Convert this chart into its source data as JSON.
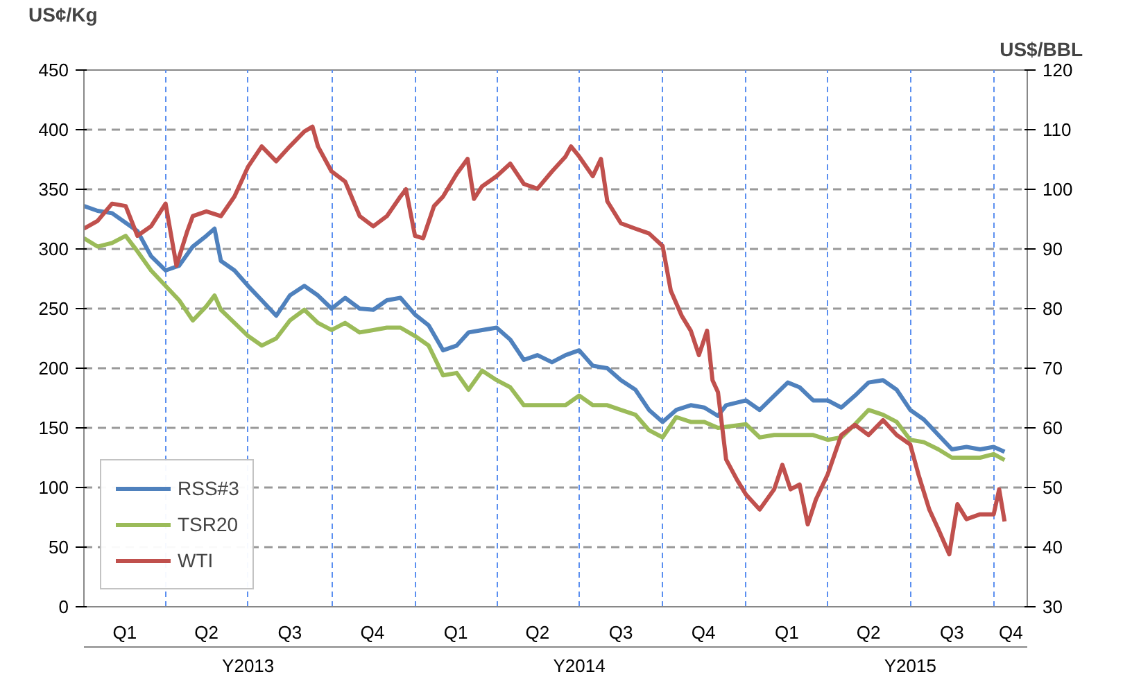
{
  "chart_data": {
    "type": "line",
    "ylabel": "US¢/Kg",
    "y2label": "US$/BBL",
    "xlim": [
      "2013-01-01",
      "2015-11-07"
    ],
    "xticks": [
      {
        "value": "2013-02-15",
        "label": "Q1"
      },
      {
        "value": "2013-04-01",
        "label": null
      },
      {
        "value": "2013-05-16",
        "label": "Q2"
      },
      {
        "value": "2013-07-01",
        "label": null
      },
      {
        "value": "2013-08-16",
        "label": "Q3"
      },
      {
        "value": "2013-10-01",
        "label": null
      },
      {
        "value": "2013-11-15",
        "label": "Q4"
      },
      {
        "value": "2014-01-01",
        "label": null
      },
      {
        "value": "2014-02-15",
        "label": "Q1"
      },
      {
        "value": "2014-04-01",
        "label": null
      },
      {
        "value": "2014-05-16",
        "label": "Q2"
      },
      {
        "value": "2014-07-01",
        "label": null
      },
      {
        "value": "2014-08-16",
        "label": "Q3"
      },
      {
        "value": "2014-10-01",
        "label": null
      },
      {
        "value": "2014-11-15",
        "label": "Q4"
      },
      {
        "value": "2015-01-01",
        "label": null
      },
      {
        "value": "2015-02-15",
        "label": "Q1"
      },
      {
        "value": "2015-04-01",
        "label": null
      },
      {
        "value": "2015-05-16",
        "label": "Q2"
      },
      {
        "value": "2015-07-01",
        "label": null
      },
      {
        "value": "2015-08-16",
        "label": "Q3"
      },
      {
        "value": "2015-10-01",
        "label": null
      },
      {
        "value": "2015-10-20",
        "label": "Q4"
      }
    ],
    "ylim": [
      0,
      450
    ],
    "yticks": [
      0,
      50,
      100,
      150,
      200,
      250,
      300,
      350,
      400,
      450
    ],
    "y2lim": [
      30,
      120
    ],
    "y2ticks": [
      30,
      40,
      50,
      60,
      70,
      80,
      90,
      100,
      110,
      120
    ],
    "annotations": [
      "Y2013",
      "Y2014",
      "Y2015"
    ],
    "grid": true,
    "legend": "bottom left",
    "line_style": "solid",
    "marker": "none",
    "series": [
      {
        "name": "RSS#3",
        "color": "#4f81bd",
        "x": [
          "2013-01-01",
          "2013-01-16",
          "2013-02-01",
          "2013-03-01",
          "2013-03-16",
          "2013-04-01",
          "2013-04-16",
          "2013-05-01",
          "2013-05-16",
          "2013-05-25",
          "2013-06-01",
          "2013-06-16",
          "2013-07-01",
          "2013-07-16",
          "2013-08-01",
          "2013-08-16",
          "2013-09-01",
          "2013-09-16",
          "2013-10-01",
          "2013-10-16",
          "2013-11-01",
          "2013-11-16",
          "2013-12-01",
          "2013-12-16",
          "2014-01-01",
          "2014-01-16",
          "2014-02-01",
          "2014-02-16",
          "2014-03-01",
          "2014-03-16",
          "2014-04-01",
          "2014-04-16",
          "2014-05-01",
          "2014-05-16",
          "2014-06-01",
          "2014-06-16",
          "2014-07-01",
          "2014-07-16",
          "2014-08-01",
          "2014-08-16",
          "2014-09-01",
          "2014-09-16",
          "2014-10-01",
          "2014-10-16",
          "2014-11-01",
          "2014-11-16",
          "2014-12-01",
          "2014-12-10",
          "2015-01-01",
          "2015-01-16",
          "2015-02-01",
          "2015-02-16",
          "2015-03-01",
          "2015-03-16",
          "2015-04-01",
          "2015-04-16",
          "2015-05-01",
          "2015-05-16",
          "2015-06-01",
          "2015-06-16",
          "2015-07-01",
          "2015-07-16",
          "2015-08-01",
          "2015-08-16",
          "2015-09-01",
          "2015-09-16",
          "2015-10-01",
          "2015-10-13"
        ],
        "values": [
          336,
          332,
          330,
          315,
          294,
          282,
          286,
          302,
          311,
          317,
          290,
          282,
          269,
          257,
          244,
          261,
          269,
          261,
          250,
          259,
          250,
          249,
          257,
          259,
          245,
          236,
          215,
          219,
          230,
          232,
          234,
          224,
          207,
          211,
          205,
          211,
          215,
          202,
          200,
          190,
          182,
          165,
          155,
          165,
          169,
          167,
          160,
          169,
          173,
          165,
          177,
          188,
          184,
          173,
          173,
          167,
          177,
          188,
          190,
          182,
          165,
          157,
          144,
          132,
          134,
          132,
          134,
          130
        ]
      },
      {
        "name": "TSR20",
        "color": "#9bbb59",
        "x": [
          "2013-01-01",
          "2013-01-16",
          "2013-02-01",
          "2013-02-16",
          "2013-03-01",
          "2013-03-16",
          "2013-04-01",
          "2013-04-16",
          "2013-05-01",
          "2013-05-16",
          "2013-05-25",
          "2013-06-01",
          "2013-06-16",
          "2013-07-01",
          "2013-07-16",
          "2013-08-01",
          "2013-08-16",
          "2013-09-01",
          "2013-09-16",
          "2013-10-01",
          "2013-10-16",
          "2013-11-01",
          "2013-11-16",
          "2013-12-01",
          "2013-12-16",
          "2014-01-01",
          "2014-01-16",
          "2014-02-01",
          "2014-02-16",
          "2014-03-01",
          "2014-03-16",
          "2014-04-01",
          "2014-04-16",
          "2014-05-01",
          "2014-05-16",
          "2014-06-01",
          "2014-06-16",
          "2014-07-01",
          "2014-07-16",
          "2014-08-01",
          "2014-08-16",
          "2014-09-01",
          "2014-09-16",
          "2014-10-01",
          "2014-10-16",
          "2014-11-01",
          "2014-11-16",
          "2014-12-01",
          "2015-01-01",
          "2015-01-16",
          "2015-02-01",
          "2015-03-01",
          "2015-03-16",
          "2015-04-01",
          "2015-04-16",
          "2015-05-01",
          "2015-05-16",
          "2015-06-01",
          "2015-06-16",
          "2015-07-01",
          "2015-07-16",
          "2015-08-01",
          "2015-08-16",
          "2015-09-01",
          "2015-09-16",
          "2015-10-01",
          "2015-10-13"
        ],
        "values": [
          309,
          302,
          305,
          311,
          298,
          282,
          269,
          257,
          240,
          252,
          261,
          249,
          238,
          227,
          219,
          225,
          240,
          249,
          238,
          232,
          238,
          230,
          232,
          234,
          234,
          227,
          219,
          194,
          196,
          182,
          198,
          190,
          184,
          169,
          169,
          169,
          169,
          177,
          169,
          169,
          165,
          161,
          148,
          142,
          159,
          155,
          155,
          150,
          153,
          142,
          144,
          144,
          144,
          140,
          142,
          153,
          165,
          161,
          155,
          140,
          138,
          132,
          125,
          125,
          125,
          128,
          123
        ]
      },
      {
        "name": "WTI",
        "color": "#c0504d",
        "axis": "y2",
        "x": [
          "2013-01-01",
          "2013-01-16",
          "2013-02-01",
          "2013-02-16",
          "2013-03-01",
          "2013-03-16",
          "2013-04-01",
          "2013-04-13",
          "2013-04-25",
          "2013-05-01",
          "2013-05-16",
          "2013-06-01",
          "2013-06-16",
          "2013-07-01",
          "2013-07-16",
          "2013-08-01",
          "2013-08-16",
          "2013-09-01",
          "2013-09-10",
          "2013-09-16",
          "2013-10-01",
          "2013-10-16",
          "2013-11-01",
          "2013-11-16",
          "2013-12-01",
          "2013-12-16",
          "2013-12-22",
          "2014-01-01",
          "2014-01-10",
          "2014-01-22",
          "2014-02-01",
          "2014-02-16",
          "2014-02-28",
          "2014-03-07",
          "2014-03-16",
          "2014-04-01",
          "2014-04-16",
          "2014-05-01",
          "2014-05-16",
          "2014-06-01",
          "2014-06-16",
          "2014-06-22",
          "2014-07-01",
          "2014-07-16",
          "2014-07-25",
          "2014-08-01",
          "2014-08-16",
          "2014-09-01",
          "2014-09-16",
          "2014-10-01",
          "2014-10-10",
          "2014-10-22",
          "2014-11-01",
          "2014-11-10",
          "2014-11-19",
          "2014-11-25",
          "2014-12-01",
          "2014-12-10",
          "2014-12-22",
          "2015-01-01",
          "2015-01-16",
          "2015-02-01",
          "2015-02-10",
          "2015-02-19",
          "2015-03-01",
          "2015-03-10",
          "2015-03-19",
          "2015-04-01",
          "2015-04-16",
          "2015-05-01",
          "2015-05-16",
          "2015-06-01",
          "2015-06-16",
          "2015-07-01",
          "2015-07-10",
          "2015-07-22",
          "2015-08-01",
          "2015-08-13",
          "2015-08-22",
          "2015-09-01",
          "2015-09-16",
          "2015-10-01",
          "2015-10-07",
          "2015-10-13"
        ],
        "values": [
          93.4,
          94.7,
          97.6,
          97.2,
          92.2,
          93.8,
          97.6,
          87.2,
          93.0,
          95.5,
          96.3,
          95.5,
          98.8,
          103.8,
          107.2,
          104.7,
          107.2,
          109.7,
          110.5,
          107.2,
          103.0,
          101.3,
          95.5,
          93.8,
          95.5,
          98.8,
          100.0,
          92.2,
          91.8,
          97.2,
          98.8,
          102.6,
          105.1,
          98.4,
          100.5,
          102.2,
          104.3,
          100.9,
          100.1,
          103.0,
          105.5,
          107.2,
          105.5,
          102.2,
          105.1,
          98.0,
          94.3,
          93.4,
          92.6,
          90.5,
          83.0,
          78.8,
          76.3,
          72.2,
          76.3,
          68.0,
          66.0,
          54.7,
          51.3,
          48.8,
          46.3,
          49.7,
          53.8,
          49.7,
          50.5,
          43.8,
          48.0,
          52.2,
          58.8,
          60.5,
          58.8,
          61.3,
          58.8,
          57.2,
          52.2,
          46.3,
          43.0,
          38.8,
          47.2,
          44.7,
          45.5,
          45.5,
          49.7,
          44.3
        ]
      }
    ]
  }
}
